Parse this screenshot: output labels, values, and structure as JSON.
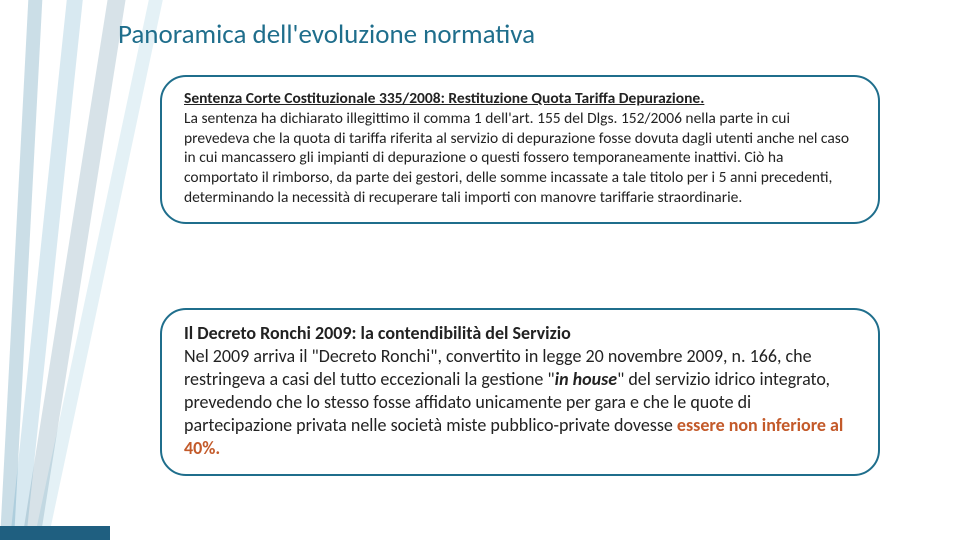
{
  "colors": {
    "title": "#1f6e8c",
    "box_border": "#1f6e8c",
    "body_text": "#222222",
    "emphasis": "#c35a2a",
    "background": "#ffffff"
  },
  "title": "Panoramica dell'evoluzione normativa",
  "box1": {
    "heading": "Sentenza Corte Costituzionale 335/2008: Restituzione Quota Tariffa Depurazione.",
    "body": "La sentenza ha dichiarato illegittimo il comma 1 dell'art. 155 del Dlgs. 152/2006 nella parte in cui prevedeva che la quota di tariffa riferita al servizio di depurazione fosse dovuta dagli utenti anche nel caso in cui mancassero gli impianti di depurazione o questi fossero temporaneamente inattivi. Ciò ha comportato il rimborso, da parte dei gestori, delle somme incassate a tale titolo per i 5 anni precedenti, determinando la necessità di recuperare tali importi con manovre tariffarie straordinarie."
  },
  "box2": {
    "heading": "Il Decreto Ronchi 2009: la contendibilità del Servizio",
    "body_pre": "Nel 2009 arriva il \"Decreto Ronchi\", convertito in legge 20 novembre 2009, n. 166, che restringeva a casi del tutto eccezionali la gestione \"",
    "in_house": "in house",
    "body_mid": "\" del servizio idrico integrato, prevedendo che lo stesso fosse affidato unicamente per gara e che le quote di partecipazione privata nelle società miste pubblico-private dovesse ",
    "emphasis": "essere non inferiore al 40%."
  },
  "fontsizes": {
    "title_pt": 27,
    "box1_pt": 15.5,
    "box2_pt": 18
  }
}
